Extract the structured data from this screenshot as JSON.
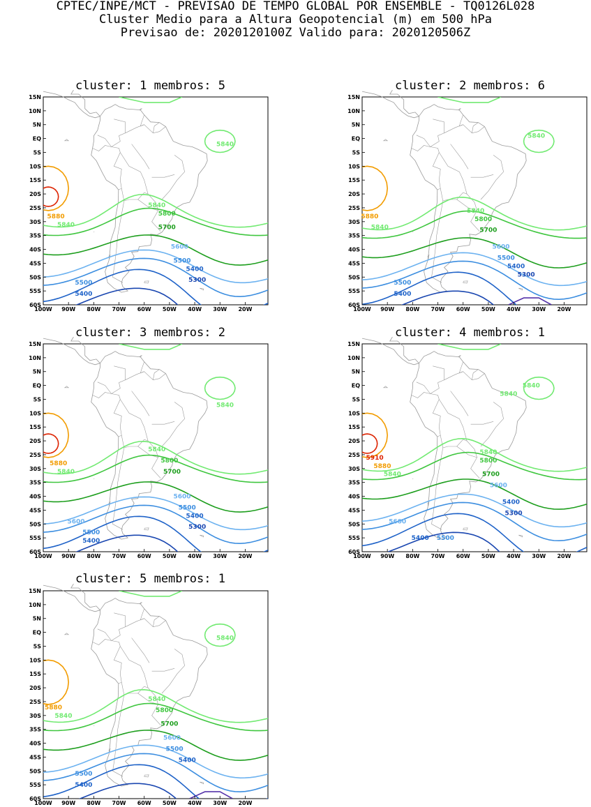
{
  "header": {
    "line1": "CPTEC/INPE/MCT - PREVISAO DE TEMPO GLOBAL POR ENSEMBLE - TQ0126L028",
    "line2": "Cluster Medio para a Altura Geopotencial (m) em 500 hPa",
    "line3": "Previsao de: 2020120100Z   Valido para: 2020120506Z"
  },
  "axes": {
    "lat_labels": [
      "15N",
      "10N",
      "5N",
      "EQ",
      "5S",
      "10S",
      "15S",
      "20S",
      "25S",
      "30S",
      "35S",
      "40S",
      "45S",
      "50S",
      "55S",
      "60S"
    ],
    "lon_labels": [
      "100W",
      "90W",
      "80W",
      "70W",
      "60W",
      "50W",
      "40W",
      "30W",
      "20W"
    ]
  },
  "colors": {
    "c5910": "#dd2200",
    "c5880": "#f29c00",
    "c5840": "#72ea72",
    "c5800": "#3fc63f",
    "c5700": "#1d9e1d",
    "c5600": "#6cb2f0",
    "c5500": "#3c8ee0",
    "c5400": "#1e62c8",
    "c5300": "#1946b0",
    "c5200": "#5533aa",
    "land": "#9a9a9a"
  },
  "panels": [
    {
      "title": "cluster: 1   membros: 5",
      "labels": [
        {
          "t": "5840",
          "x": -28,
          "y": -2,
          "c": "c5840"
        },
        {
          "t": "5840",
          "x": -55,
          "y": -24,
          "c": "c5840"
        },
        {
          "t": "5880",
          "x": -95,
          "y": -28,
          "c": "c5880"
        },
        {
          "t": "5840",
          "x": -91,
          "y": -31,
          "c": "c5840"
        },
        {
          "t": "5800",
          "x": -51,
          "y": -27,
          "c": "c5800"
        },
        {
          "t": "5700",
          "x": -51,
          "y": -32,
          "c": "c5700"
        },
        {
          "t": "5600",
          "x": -46,
          "y": -39,
          "c": "c5600"
        },
        {
          "t": "5500",
          "x": -45,
          "y": -44,
          "c": "c5500"
        },
        {
          "t": "5400",
          "x": -40,
          "y": -47,
          "c": "c5400"
        },
        {
          "t": "5300",
          "x": -39,
          "y": -51,
          "c": "c5300"
        },
        {
          "t": "5500",
          "x": -84,
          "y": -52,
          "c": "c5500"
        },
        {
          "t": "5400",
          "x": -84,
          "y": -56,
          "c": "c5400"
        }
      ]
    },
    {
      "title": "cluster: 2   membros: 6",
      "labels": [
        {
          "t": "5840",
          "x": -31,
          "y": 1,
          "c": "c5840"
        },
        {
          "t": "5840",
          "x": -55,
          "y": -26,
          "c": "c5840"
        },
        {
          "t": "5880",
          "x": -97,
          "y": -28,
          "c": "c5880"
        },
        {
          "t": "5840",
          "x": -93,
          "y": -32,
          "c": "c5840"
        },
        {
          "t": "5800",
          "x": -52,
          "y": -29,
          "c": "c5800"
        },
        {
          "t": "5700",
          "x": -50,
          "y": -33,
          "c": "c5700"
        },
        {
          "t": "5600",
          "x": -45,
          "y": -39,
          "c": "c5600"
        },
        {
          "t": "5500",
          "x": -43,
          "y": -43,
          "c": "c5500"
        },
        {
          "t": "5400",
          "x": -39,
          "y": -46,
          "c": "c5400"
        },
        {
          "t": "5300",
          "x": -35,
          "y": -49,
          "c": "c5300"
        },
        {
          "t": "5500",
          "x": -84,
          "y": -52,
          "c": "c5500"
        },
        {
          "t": "5400",
          "x": -84,
          "y": -56,
          "c": "c5400"
        }
      ]
    },
    {
      "title": "cluster: 3   membros: 2",
      "labels": [
        {
          "t": "5840",
          "x": -28,
          "y": -7,
          "c": "c5840"
        },
        {
          "t": "5840",
          "x": -55,
          "y": -23,
          "c": "c5840"
        },
        {
          "t": "5880",
          "x": -94,
          "y": -28,
          "c": "c5880"
        },
        {
          "t": "5840",
          "x": -91,
          "y": -31,
          "c": "c5840"
        },
        {
          "t": "5800",
          "x": -50,
          "y": -27,
          "c": "c5800"
        },
        {
          "t": "5700",
          "x": -49,
          "y": -31,
          "c": "c5700"
        },
        {
          "t": "5600",
          "x": -45,
          "y": -40,
          "c": "c5600"
        },
        {
          "t": "5500",
          "x": -43,
          "y": -44,
          "c": "c5500"
        },
        {
          "t": "5400",
          "x": -40,
          "y": -47,
          "c": "c5400"
        },
        {
          "t": "5300",
          "x": -39,
          "y": -51,
          "c": "c5300"
        },
        {
          "t": "5600",
          "x": -87,
          "y": -49,
          "c": "c5600"
        },
        {
          "t": "5500",
          "x": -81,
          "y": -53,
          "c": "c5500"
        },
        {
          "t": "5400",
          "x": -81,
          "y": -56,
          "c": "c5400"
        }
      ]
    },
    {
      "title": "cluster: 4   membros: 1",
      "labels": [
        {
          "t": "5840",
          "x": -33,
          "y": 0,
          "c": "c5840"
        },
        {
          "t": "5840",
          "x": -42,
          "y": -3,
          "c": "c5840"
        },
        {
          "t": "5910",
          "x": -95,
          "y": -26,
          "c": "c5910"
        },
        {
          "t": "5880",
          "x": -92,
          "y": -29,
          "c": "c5880"
        },
        {
          "t": "5840",
          "x": -88,
          "y": -32,
          "c": "c5840"
        },
        {
          "t": "5840",
          "x": -50,
          "y": -24,
          "c": "c5840"
        },
        {
          "t": "5800",
          "x": -50,
          "y": -27,
          "c": "c5800"
        },
        {
          "t": "5700",
          "x": -49,
          "y": -32,
          "c": "c5700"
        },
        {
          "t": "5600",
          "x": -46,
          "y": -36,
          "c": "c5600"
        },
        {
          "t": "5400",
          "x": -41,
          "y": -42,
          "c": "c5400"
        },
        {
          "t": "5300",
          "x": -40,
          "y": -46,
          "c": "c5300"
        },
        {
          "t": "5600",
          "x": -86,
          "y": -49,
          "c": "c5600"
        },
        {
          "t": "5400",
          "x": -77,
          "y": -55,
          "c": "c5400"
        },
        {
          "t": "5500",
          "x": -67,
          "y": -55,
          "c": "c5500"
        }
      ]
    },
    {
      "title": "cluster: 5   membros: 1",
      "labels": [
        {
          "t": "5840",
          "x": -28,
          "y": -2,
          "c": "c5840"
        },
        {
          "t": "5840",
          "x": -55,
          "y": -24,
          "c": "c5840"
        },
        {
          "t": "5880",
          "x": -96,
          "y": -27,
          "c": "c5880"
        },
        {
          "t": "5840",
          "x": -92,
          "y": -30,
          "c": "c5840"
        },
        {
          "t": "5800",
          "x": -52,
          "y": -28,
          "c": "c5800"
        },
        {
          "t": "5700",
          "x": -50,
          "y": -33,
          "c": "c5700"
        },
        {
          "t": "5600",
          "x": -49,
          "y": -38,
          "c": "c5600"
        },
        {
          "t": "5500",
          "x": -48,
          "y": -42,
          "c": "c5500"
        },
        {
          "t": "5400",
          "x": -43,
          "y": -46,
          "c": "c5400"
        },
        {
          "t": "5500",
          "x": -84,
          "y": -51,
          "c": "c5500"
        },
        {
          "t": "5400",
          "x": -84,
          "y": -55,
          "c": "c5400"
        }
      ]
    }
  ]
}
